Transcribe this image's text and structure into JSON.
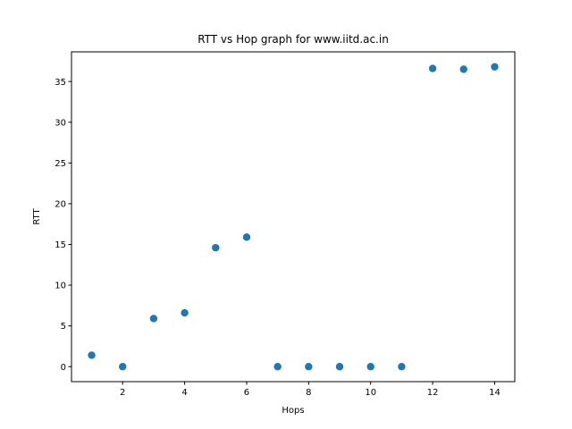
{
  "chart_data": {
    "type": "scatter",
    "title": "RTT vs Hop graph for www.iitd.ac.in",
    "xlabel": "Hops",
    "ylabel": "RTT",
    "x": [
      1,
      2,
      3,
      4,
      5,
      6,
      7,
      8,
      9,
      10,
      11,
      12,
      13,
      14
    ],
    "y": [
      1.4,
      0,
      5.9,
      6.6,
      14.6,
      15.9,
      0,
      0,
      0,
      0,
      0,
      36.6,
      36.5,
      36.8
    ],
    "xlim": [
      0.35,
      14.65
    ],
    "ylim": [
      -1.84,
      38.64
    ],
    "xticks": [
      2,
      4,
      6,
      8,
      10,
      12,
      14
    ],
    "xtick_labels": [
      "2",
      "4",
      "6",
      "8",
      "10",
      "12",
      "14"
    ],
    "yticks": [
      0,
      5,
      10,
      15,
      20,
      25,
      30,
      35
    ],
    "ytick_labels": [
      "0",
      "5",
      "10",
      "15",
      "20",
      "25",
      "30",
      "35"
    ],
    "grid": false,
    "marker_color": "#1f77b4"
  }
}
